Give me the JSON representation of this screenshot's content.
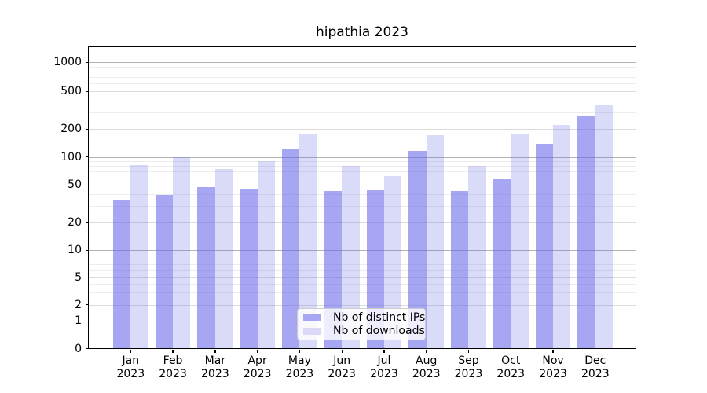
{
  "title": "hipathia 2023",
  "chart_data": {
    "type": "bar",
    "title": "hipathia 2023",
    "categories": [
      "Jan 2023",
      "Feb 2023",
      "Mar 2023",
      "Apr 2023",
      "May 2023",
      "Jun 2023",
      "Jul 2023",
      "Aug 2023",
      "Sep 2023",
      "Oct 2023",
      "Nov 2023",
      "Dec 2023"
    ],
    "series": [
      {
        "name": "Nb of distinct IPs",
        "color": "rgba(102,102,232,0.58)",
        "swatch_color": "#a6a6f2",
        "values": [
          35,
          39,
          47,
          45,
          122,
          43,
          44,
          116,
          43,
          57,
          139,
          278
        ]
      },
      {
        "name": "Nb of downloads",
        "color": "rgba(102,102,232,0.24)",
        "swatch_color": "#dadaf8",
        "values": [
          81,
          100,
          74,
          91,
          174,
          80,
          62,
          171,
          80,
          174,
          222,
          357
        ]
      }
    ],
    "xlabel": "",
    "ylabel": "",
    "yscale": "symlog",
    "yticks": [
      0,
      1,
      2,
      5,
      10,
      20,
      50,
      100,
      200,
      500,
      1000
    ],
    "ylim": [
      0,
      1400
    ],
    "grid": true,
    "legend_position": "lower center"
  },
  "colors": {
    "grid_major": "#b2b2b2",
    "grid_mid": "#dcdcdc",
    "grid_minor": "#ececec",
    "axis": "#000000",
    "background": "#ffffff"
  }
}
